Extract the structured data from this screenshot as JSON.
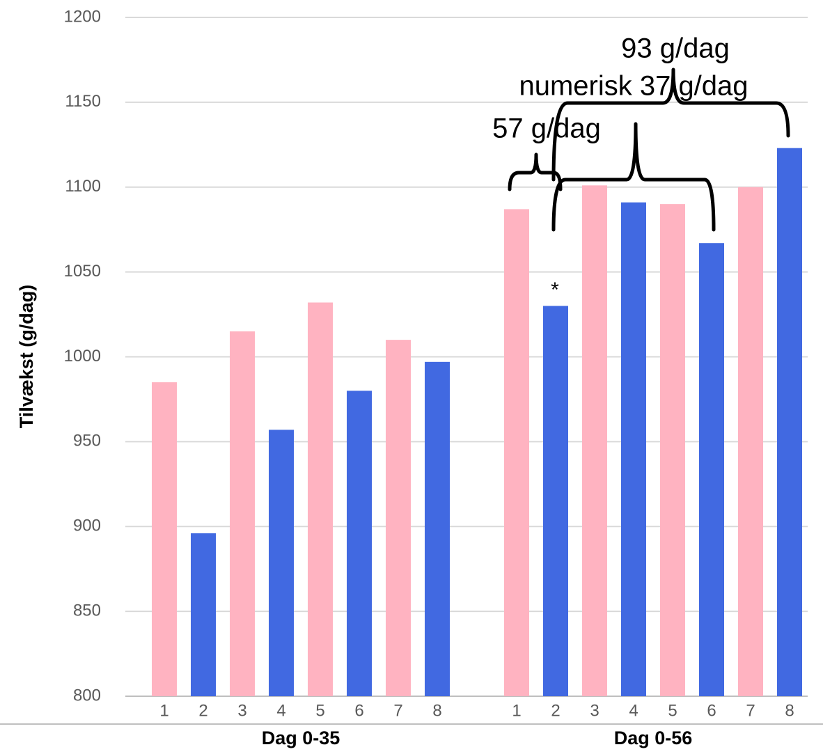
{
  "chart_data": {
    "type": "bar",
    "y_label": "Tilvækst (g/dag)",
    "ylim": [
      800,
      1200
    ],
    "yticks": [
      800,
      850,
      900,
      950,
      1000,
      1050,
      1100,
      1150,
      1200
    ],
    "grid": true,
    "colors": [
      "#ffb3c1",
      "#4169e1",
      "#ffb3c1",
      "#4169e1",
      "#ffb3c1",
      "#4169e1",
      "#ffb3c1",
      "#4169e1"
    ],
    "groups": [
      {
        "name": "Dag 0-35",
        "categories": [
          "1",
          "2",
          "3",
          "4",
          "5",
          "6",
          "7",
          "8"
        ],
        "values": [
          985,
          896,
          1015,
          957,
          1032,
          980,
          1010,
          997
        ]
      },
      {
        "name": "Dag 0-56",
        "categories": [
          "1",
          "2",
          "3",
          "4",
          "5",
          "6",
          "7",
          "8"
        ],
        "values": [
          1087,
          1030,
          1101,
          1091,
          1090,
          1067,
          1100,
          1123
        ]
      }
    ],
    "annotations": [
      "93 g/dag",
      "numerisk 37 g/dag",
      "57 g/dag",
      "*"
    ]
  }
}
